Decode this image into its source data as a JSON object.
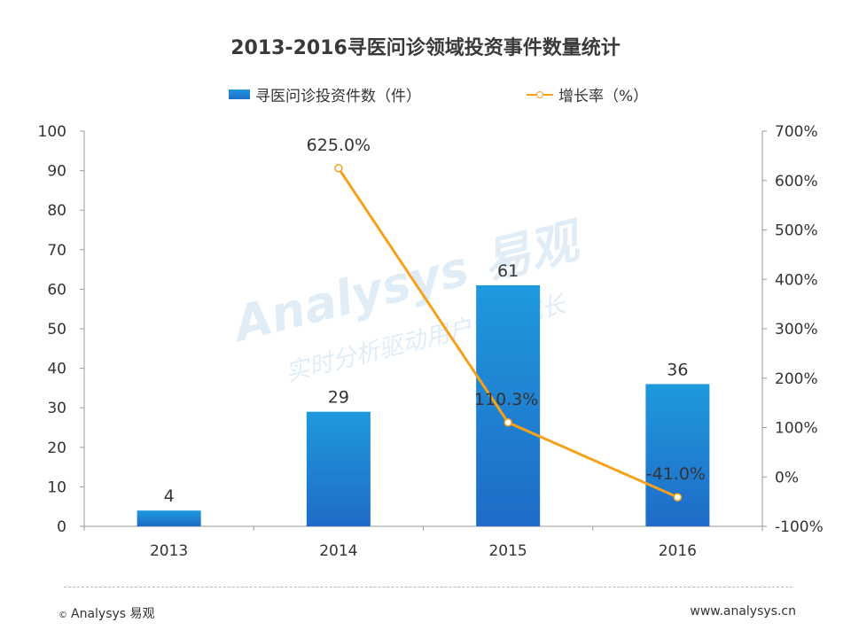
{
  "chart_data": {
    "type": "bar",
    "title": "2013-2016寻医问诊领域投资事件数量统计",
    "categories": [
      "2013",
      "2014",
      "2015",
      "2016"
    ],
    "series": [
      {
        "name": "寻医问诊投资件数（件）",
        "type": "bar",
        "axis": "left",
        "values": [
          4,
          29,
          61,
          36
        ],
        "labels": [
          "4",
          "29",
          "61",
          "36"
        ],
        "color": "#1f82d2"
      },
      {
        "name": "增长率（%）",
        "type": "line",
        "axis": "right",
        "values": [
          null,
          625.0,
          110.3,
          -41.0
        ],
        "labels": [
          "",
          "625.0%",
          "110.3%",
          "-41.0%"
        ],
        "color": "#f5a11c"
      }
    ],
    "y_left": {
      "min": 0,
      "max": 100,
      "ticks": [
        "0",
        "10",
        "20",
        "30",
        "40",
        "50",
        "60",
        "70",
        "80",
        "90",
        "100"
      ]
    },
    "y_right": {
      "min": -100,
      "max": 700,
      "ticks": [
        "-100%",
        "0%",
        "100%",
        "200%",
        "300%",
        "400%",
        "500%",
        "600%",
        "700%"
      ]
    },
    "grid": false,
    "legend_position": "top-center"
  },
  "watermark": {
    "brand": "Analysys 易观",
    "slogan": "实时分析驱动用户资产成长"
  },
  "footer": {
    "copyright_mark": "©",
    "copyright": "Analysys 易观",
    "url": "www.analysys.cn"
  }
}
